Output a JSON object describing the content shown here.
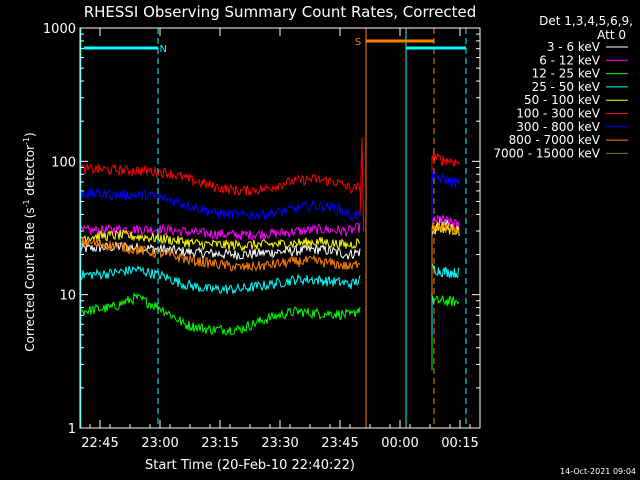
{
  "chart_data": {
    "type": "line",
    "title": "RHESSI Observing Summary Count Rates, Corrected",
    "xlabel": "Start Time (20-Feb-10 22:40:22)",
    "ylabel_main": "Corrected Count Rate (s",
    "ylabel_exp1": "-1",
    "ylabel_mid": " detector",
    "ylabel_exp2": "-1",
    "ylabel_end": ")",
    "y_scale": "log",
    "ylim": [
      1,
      1000
    ],
    "xlim_min": [
      0,
      100
    ],
    "x_ticks": [
      {
        "label": "22:45",
        "min": 5
      },
      {
        "label": "23:00",
        "min": 20
      },
      {
        "label": "23:15",
        "min": 35
      },
      {
        "label": "23:30",
        "min": 50
      },
      {
        "label": "23:45",
        "min": 65
      },
      {
        "label": "00:00",
        "min": 80
      },
      {
        "label": "00:15",
        "min": 95
      }
    ],
    "y_ticks": [
      {
        "label": "1",
        "value": 1
      },
      {
        "label": "10",
        "value": 10
      },
      {
        "label": "100",
        "value": 100
      },
      {
        "label": "1000",
        "value": 1000
      }
    ],
    "legend_header": [
      "Det 1,3,4,5,6,9,",
      "Att 0"
    ],
    "series": [
      {
        "name": "3 - 6 keV",
        "color": "#ffffff",
        "pts": [
          [
            0,
            22
          ],
          [
            10,
            23
          ],
          [
            20,
            22
          ],
          [
            30,
            20.5
          ],
          [
            40,
            20
          ],
          [
            50,
            21
          ],
          [
            60,
            22
          ],
          [
            67,
            20
          ],
          [
            70,
            21
          ]
        ],
        "post": [
          [
            88,
            28
          ],
          [
            90,
            35
          ],
          [
            95,
            31
          ]
        ]
      },
      {
        "name": "6 - 12 keV",
        "color": "#ff00ff",
        "pts": [
          [
            0,
            30
          ],
          [
            10,
            31
          ],
          [
            20,
            31
          ],
          [
            30,
            29
          ],
          [
            40,
            28
          ],
          [
            50,
            29
          ],
          [
            60,
            31
          ],
          [
            67,
            30
          ],
          [
            70,
            32
          ]
        ],
        "post": [
          [
            88,
            35
          ],
          [
            90,
            37
          ],
          [
            95,
            33
          ]
        ]
      },
      {
        "name": "12 - 25 keV",
        "color": "#00ff00",
        "pts": [
          [
            0,
            7.5
          ],
          [
            8,
            8
          ],
          [
            14,
            9.5
          ],
          [
            20,
            8
          ],
          [
            26,
            6
          ],
          [
            32,
            5.5
          ],
          [
            40,
            5.5
          ],
          [
            48,
            6.8
          ],
          [
            54,
            7.5
          ],
          [
            58,
            7.3
          ],
          [
            64,
            7.2
          ],
          [
            68,
            7
          ],
          [
            70,
            8
          ]
        ],
        "post": [
          [
            88,
            9
          ],
          [
            90,
            9
          ],
          [
            95,
            8.8
          ]
        ]
      },
      {
        "name": "25 - 50 keV",
        "color": "#00ffff",
        "pts": [
          [
            0,
            14
          ],
          [
            8,
            14.5
          ],
          [
            14,
            15.5
          ],
          [
            20,
            14
          ],
          [
            26,
            12
          ],
          [
            32,
            11
          ],
          [
            40,
            11
          ],
          [
            48,
            12
          ],
          [
            54,
            13
          ],
          [
            58,
            13
          ],
          [
            64,
            12.5
          ],
          [
            68,
            12
          ],
          [
            70,
            13
          ]
        ],
        "post": [
          [
            88,
            16
          ],
          [
            90,
            15
          ],
          [
            95,
            14.5
          ]
        ]
      },
      {
        "name": "50 - 100 keV",
        "color": "#ffff00",
        "pts": [
          [
            0,
            27
          ],
          [
            10,
            28
          ],
          [
            20,
            26.5
          ],
          [
            30,
            24
          ],
          [
            40,
            23.5
          ],
          [
            50,
            24
          ],
          [
            60,
            25
          ],
          [
            67,
            23.5
          ],
          [
            70,
            25
          ]
        ],
        "post": [
          [
            88,
            32
          ],
          [
            90,
            32
          ],
          [
            95,
            30
          ]
        ]
      },
      {
        "name": "100 - 300 keV",
        "color": "#ff0000",
        "pts": [
          [
            0,
            88
          ],
          [
            10,
            86
          ],
          [
            17,
            85
          ],
          [
            22,
            82
          ],
          [
            28,
            72
          ],
          [
            34,
            64
          ],
          [
            40,
            60
          ],
          [
            46,
            62
          ],
          [
            52,
            70
          ],
          [
            58,
            74
          ],
          [
            64,
            70
          ],
          [
            68,
            62
          ],
          [
            70,
            64
          ]
        ],
        "post": [
          [
            88,
            110
          ],
          [
            90,
            104
          ],
          [
            95,
            98
          ]
        ]
      },
      {
        "name": "300 - 800 keV",
        "color": "#0000ff",
        "pts": [
          [
            0,
            58
          ],
          [
            10,
            56
          ],
          [
            17,
            56
          ],
          [
            22,
            52
          ],
          [
            28,
            46
          ],
          [
            34,
            41
          ],
          [
            40,
            39.5
          ],
          [
            46,
            40
          ],
          [
            52,
            43
          ],
          [
            58,
            47
          ],
          [
            64,
            45
          ],
          [
            68,
            39
          ],
          [
            70,
            40
          ]
        ],
        "post": [
          [
            88,
            78
          ],
          [
            90,
            74
          ],
          [
            95,
            68
          ]
        ]
      },
      {
        "name": "800 - 7000 keV",
        "color": "#ff8000",
        "pts": [
          [
            0,
            25
          ],
          [
            10,
            23
          ],
          [
            17,
            21
          ],
          [
            22,
            20
          ],
          [
            28,
            18
          ],
          [
            34,
            17
          ],
          [
            40,
            16
          ],
          [
            46,
            16.5
          ],
          [
            52,
            17.5
          ],
          [
            58,
            18
          ],
          [
            64,
            17
          ],
          [
            68,
            16
          ],
          [
            70,
            18
          ]
        ],
        "post": [
          [
            88,
            34
          ],
          [
            90,
            32
          ],
          [
            95,
            30
          ]
        ]
      },
      {
        "name": "7000 - 15000 keV",
        "color": "#808000",
        "pts": [],
        "post": []
      }
    ],
    "spike": {
      "min": 70.5,
      "value": 150
    },
    "flags": [
      {
        "label": "N",
        "color": "#00ffff",
        "start_min": 1,
        "end_min": 19.5,
        "label_min": 20.8
      },
      {
        "label": "",
        "color": "#00ffff",
        "start_min": 81.5,
        "end_min": 96.5,
        "label_min": 0
      },
      {
        "label": "S",
        "color": "#ff8000",
        "start_min": 71.5,
        "end_min": 88.5,
        "label_min": 69.5
      }
    ],
    "vlines": [
      {
        "min": 0.2,
        "color": "#00ffff",
        "dash": false
      },
      {
        "min": 19.5,
        "color": "#00ffff",
        "dash": true
      },
      {
        "min": 71.5,
        "color": "#ff8000",
        "dash": false
      },
      {
        "min": 81.5,
        "color": "#00ffff",
        "dash": false
      },
      {
        "min": 88.5,
        "color": "#ff8000",
        "dash": true
      },
      {
        "min": 96.5,
        "color": "#00ffff",
        "dash": true
      }
    ],
    "gap_min": [
      71.5,
      88
    ],
    "footer_date": "14-Oct-2021 09:04"
  }
}
